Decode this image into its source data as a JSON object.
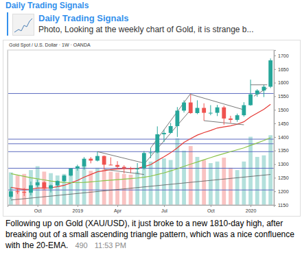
{
  "message": {
    "channel": "Daily Trading Signals",
    "reply": {
      "title": "Daily Trading Signals",
      "text": "Photo, Looking at the weekly chart of Gold, it is strange b..."
    },
    "caption": "Following up on Gold (XAU/USD), it just broke to a new 1810-day high, after breaking out of a small ascending triangle pattern, which was a nice confluence with the 20-EMA.",
    "views": 490,
    "time": "11:53 PM"
  },
  "chart_data": {
    "type": "candlestick",
    "title": "Gold Spot / U.S. Dollar · 1W · OANDA",
    "categories": [
      null,
      null,
      null,
      null,
      "Oct",
      null,
      null,
      null,
      null,
      null,
      "2019",
      null,
      null,
      null,
      null,
      null,
      "Apr",
      null,
      null,
      null,
      null,
      null,
      null,
      "Jul",
      null,
      null,
      null,
      null,
      null,
      null,
      "Oct",
      null,
      null,
      null,
      null,
      null,
      "2020",
      null,
      null,
      null
    ],
    "series": [
      {
        "type": "candlestick",
        "color": {
          "up": "#26a69a",
          "down": "#ef5350"
        },
        "open": [
          1180,
          1200,
          1198,
          1195,
          1222,
          1233,
          1210,
          1222,
          1238,
          1258,
          1284,
          1292,
          1320,
          1313,
          1330,
          1298,
          1297,
          1290,
          1285,
          1281,
          1285,
          1341,
          1343,
          1410,
          1415,
          1440,
          1497,
          1527,
          1488,
          1507,
          1489,
          1489,
          1509,
          1468,
          1463,
          1480,
          1517,
          1557,
          1571,
          1585
        ],
        "high": [
          1215,
          1212,
          1212,
          1236,
          1243,
          1237,
          1225,
          1240,
          1260,
          1286,
          1298,
          1326,
          1326,
          1346,
          1332,
          1325,
          1311,
          1296,
          1290,
          1304,
          1348,
          1360,
          1439,
          1427,
          1452,
          1510,
          1535,
          1557,
          1535,
          1524,
          1517,
          1518,
          1515,
          1478,
          1486,
          1528,
          1611,
          1576,
          1592,
          1689
        ],
        "low": [
          1172,
          1190,
          1183,
          1185,
          1215,
          1206,
          1196,
          1216,
          1235,
          1255,
          1276,
          1280,
          1303,
          1310,
          1281,
          1296,
          1281,
          1266,
          1267,
          1266,
          1280,
          1322,
          1340,
          1381,
          1412,
          1400,
          1490,
          1485,
          1484,
          1460,
          1480,
          1477,
          1445,
          1452,
          1456,
          1475,
          1515,
          1548,
          1547,
          1580
        ],
        "close": [
          1200,
          1198,
          1195,
          1222,
          1233,
          1210,
          1222,
          1238,
          1258,
          1284,
          1292,
          1320,
          1313,
          1330,
          1298,
          1297,
          1290,
          1285,
          1281,
          1285,
          1341,
          1343,
          1410,
          1415,
          1440,
          1497,
          1527,
          1488,
          1507,
          1489,
          1489,
          1509,
          1468,
          1463,
          1480,
          1517,
          1557,
          1571,
          1585,
          1682
        ]
      },
      {
        "type": "line",
        "color": "#e53935",
        "values": [
          1215,
          1210,
          1207,
          1208,
          1212,
          1212,
          1213,
          1217,
          1222,
          1231,
          1240,
          1252,
          1262,
          1272,
          1276,
          1280,
          1282,
          1283,
          1283,
          1284,
          1291,
          1298,
          1313,
          1327,
          1342,
          1360,
          1380,
          1394,
          1407,
          1416,
          1424,
          1433,
          1437,
          1441,
          1447,
          1456,
          1474,
          1488,
          1502,
          1520
        ]
      },
      {
        "type": "line",
        "color": "#8bc34a",
        "values": [
          1265,
          1260,
          1255,
          1250,
          1246,
          1242,
          1238,
          1235,
          1233,
          1232,
          1232,
          1233,
          1235,
          1237,
          1239,
          1241,
          1243,
          1245,
          1247,
          1249,
          1252,
          1256,
          1262,
          1268,
          1275,
          1283,
          1292,
          1300,
          1308,
          1316,
          1324,
          1332,
          1339,
          1346,
          1353,
          1360,
          1369,
          1378,
          1387,
          1397
        ]
      },
      {
        "type": "bar",
        "axis": "y2",
        "values": [
          420,
          380,
          400,
          450,
          500,
          430,
          410,
          380,
          400,
          450,
          470,
          520,
          440,
          480,
          460,
          430,
          420,
          400,
          390,
          430,
          520,
          560,
          820,
          600,
          580,
          860,
          700,
          760,
          620,
          580,
          540,
          560,
          610,
          480,
          450,
          560,
          880,
          620,
          640,
          900
        ]
      }
    ],
    "levels": {
      "color": "#5c6bc0",
      "values": [
        1560,
        1392,
        1375,
        1346,
        1285,
        1205
      ]
    },
    "trendlines": {
      "color": "#555555",
      "lines": [
        {
          "x": [
            13,
            20
          ],
          "values": [
            1346,
            1304
          ]
        },
        {
          "x": [
            14,
            20
          ],
          "values": [
            1281,
            1262
          ]
        },
        {
          "x": [
            20,
            27
          ],
          "values": [
            1300,
            1500
          ]
        },
        {
          "x": [
            21,
            27
          ],
          "values": [
            1360,
            1560
          ]
        },
        {
          "x": [
            27,
            35
          ],
          "values": [
            1557,
            1500
          ]
        },
        {
          "x": [
            29,
            35
          ],
          "values": [
            1460,
            1445
          ]
        },
        {
          "x": [
            36,
            38.5
          ],
          "values": [
            1592,
            1592
          ]
        },
        {
          "x": [
            36.5,
            38.5
          ],
          "values": [
            1550,
            1580
          ]
        },
        {
          "x": [
            0,
            39
          ],
          "values": [
            1168,
            1262
          ]
        }
      ]
    },
    "ylim": [
      1150,
      1720
    ],
    "yticks": [
      1150,
      1200,
      1250,
      1300,
      1350,
      1400,
      1450,
      1500,
      1550,
      1600,
      1650,
      1700
    ],
    "y2lim": [
      0,
      2000
    ],
    "y2ticks": [],
    "grid": false
  }
}
